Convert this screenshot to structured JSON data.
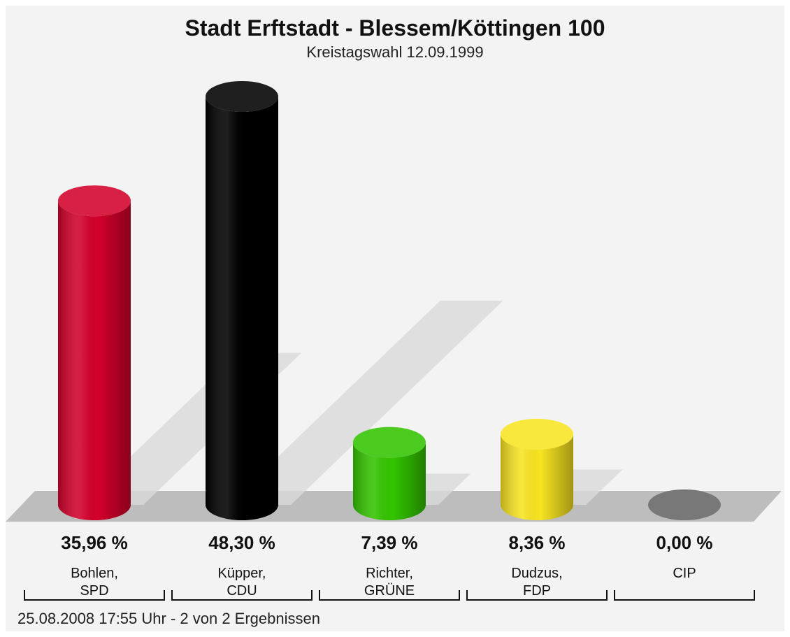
{
  "chart_data": {
    "type": "bar",
    "title": "Stadt Erftstadt - Blessem/Köttingen 100",
    "subtitle": "Kreistagswahl 12.09.1999",
    "footer": "25.08.2008 17:55 Uhr - 2 von 2 Ergebnissen",
    "categories": [
      "Bohlen,\nSPD",
      "Küpper,\nCDU",
      "Richter,\nGRÜNE",
      "Dudzus,\nFDP",
      "CIP"
    ],
    "values": [
      35.96,
      48.3,
      7.39,
      8.36,
      0.0
    ],
    "value_labels": [
      "35,96 %",
      "48,30 %",
      "7,39 %",
      "8,36 %",
      "0,00 %"
    ],
    "colors": [
      "#d3002b",
      "#000000",
      "#33c400",
      "#f8e421",
      "#666666"
    ]
  }
}
